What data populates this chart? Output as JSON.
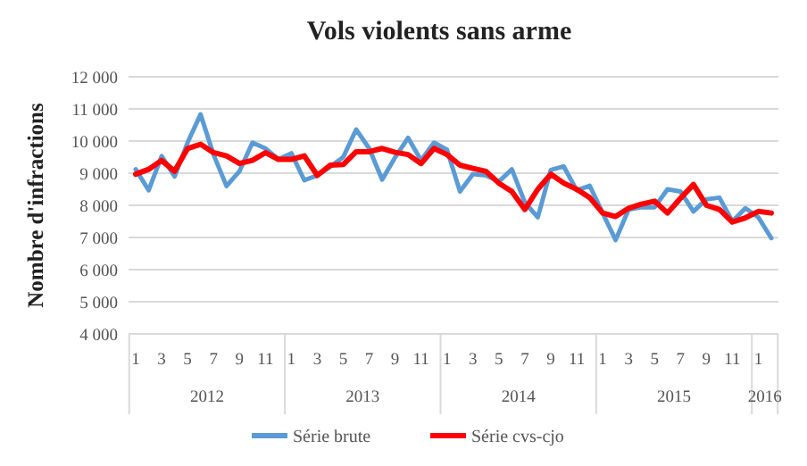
{
  "chart_data": {
    "type": "line",
    "title": "Vols violents sans arme",
    "ylabel": "Nombre d'infractions",
    "categories": [
      "1",
      null,
      "3",
      null,
      "5",
      null,
      "7",
      null,
      "9",
      null,
      "11",
      null,
      "1",
      null,
      "3",
      null,
      "5",
      null,
      "7",
      null,
      "9",
      null,
      "11",
      null,
      "1",
      null,
      "3",
      null,
      "5",
      null,
      "7",
      null,
      "9",
      null,
      "11",
      null,
      "1",
      null,
      "3",
      null,
      "5",
      null,
      "7",
      null,
      "9",
      null,
      "11",
      null,
      "1",
      null
    ],
    "annotations": [
      "2012",
      "2013",
      "2014",
      "2015",
      "2016"
    ],
    "series": [
      {
        "name": "Série brute",
        "color": "#5b9bd5",
        "values": [
          9120,
          8470,
          9530,
          8900,
          9950,
          10830,
          9580,
          8600,
          9060,
          9950,
          9770,
          9430,
          9620,
          8780,
          8930,
          9200,
          9500,
          10360,
          9770,
          8800,
          9490,
          10100,
          9400,
          9950,
          9730,
          8430,
          8970,
          8930,
          8740,
          9120,
          8090,
          7630,
          9100,
          9210,
          8470,
          8610,
          7760,
          6920,
          7870,
          7940,
          7940,
          8500,
          8430,
          7810,
          8190,
          8240,
          7500,
          7910,
          7630,
          6980
        ]
      },
      {
        "name": "Série cvs-cjo",
        "color": "#ff0000",
        "values": [
          8970,
          9120,
          9400,
          9060,
          9770,
          9900,
          9640,
          9540,
          9300,
          9400,
          9640,
          9430,
          9430,
          9540,
          8930,
          9250,
          9270,
          9670,
          9670,
          9770,
          9650,
          9580,
          9300,
          9770,
          9580,
          9250,
          9150,
          9060,
          8690,
          8430,
          7870,
          8500,
          8970,
          8690,
          8500,
          8240,
          7760,
          7650,
          7910,
          8040,
          8130,
          7760,
          8220,
          8650,
          8000,
          7870,
          7480,
          7610,
          7810,
          7760
        ]
      }
    ],
    "ylim": [
      4000,
      12000
    ],
    "yticks": [
      {
        "value": 4000,
        "label": "4 000"
      },
      {
        "value": 5000,
        "label": "5 000"
      },
      {
        "value": 6000,
        "label": "6 000"
      },
      {
        "value": 7000,
        "label": "7 000"
      },
      {
        "value": 8000,
        "label": "8 000"
      },
      {
        "value": 9000,
        "label": "9 000"
      },
      {
        "value": 10000,
        "label": "10 000"
      },
      {
        "value": 11000,
        "label": "11 000"
      },
      {
        "value": 12000,
        "label": "12 000"
      }
    ],
    "grid": "y",
    "legend": "bottom",
    "marker": "none",
    "line_style": "solid"
  }
}
